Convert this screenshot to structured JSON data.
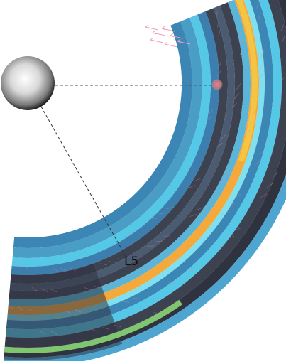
{
  "diagram": {
    "point_label": "L5",
    "colors": {
      "background": "#ffffff",
      "dark_band": "#3c4250",
      "deep_band": "#2f3340",
      "mid_blue": "#3b86b5",
      "light_blue": "#55c8e8",
      "cyan": "#7fe0f0",
      "hot_orange": "#f6a93b",
      "hot_yellow": "#f3d24a",
      "green_edge": "#8ee07a",
      "arrow_pink": "#e58aa6",
      "guide_line": "#555555"
    },
    "icons": [
      "sphere-icon",
      "particle-marker-icon"
    ]
  }
}
